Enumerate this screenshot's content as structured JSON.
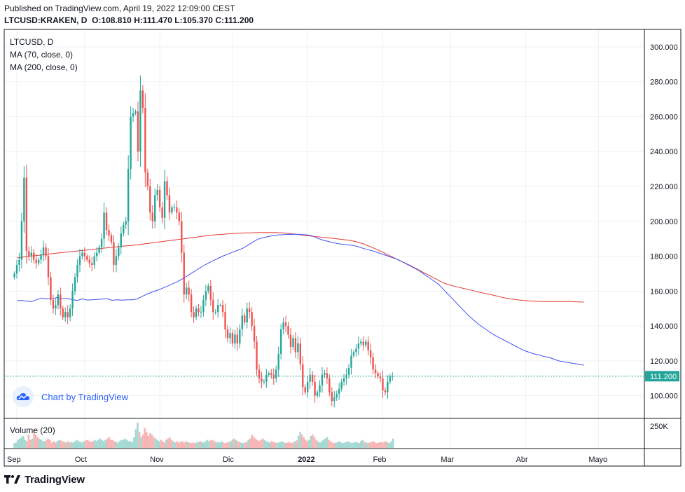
{
  "header": {
    "published": "Published on TradingView.com, April 19, 2022 12:09:00 CEST",
    "symbol": "LTCUSD:KRAKEN, D",
    "o_label": "O:",
    "o_value": "108.810",
    "h_label": "H:",
    "h_value": "111.470",
    "l_label": "L:",
    "l_value": "105.370",
    "c_label": "C:",
    "c_value": "111.200"
  },
  "legend": {
    "symbol": "LTCUSD, D",
    "ma70": "MA (70, close, 0)",
    "ma200": "MA (200, close, 0)"
  },
  "volume_legend": "Volume (20)",
  "chart_by": "Chart by TradingView",
  "brand": "TradingView",
  "icons": {
    "cloud": "tradingview-cloud-icon",
    "logo": "tradingview-logo-icon"
  },
  "colors": {
    "up": "#26a69a",
    "down": "#ef5350",
    "ma70": "#3f51f5",
    "ma200": "#e53935",
    "last_price": "#26a69a",
    "grid": "#eef1f5"
  },
  "chart_data": {
    "type": "candlestick",
    "price_axis": {
      "ticks": [
        100,
        120,
        140,
        160,
        180,
        200,
        220,
        240,
        260,
        280,
        300
      ],
      "tick_labels": [
        "100.000",
        "120.000",
        "140.000",
        "160.000",
        "180.000",
        "200.000",
        "220.000",
        "240.000",
        "260.000",
        "280.000",
        "300.000"
      ],
      "range": [
        87,
        310
      ],
      "last_price": 111.2,
      "last_price_label": "111.200"
    },
    "volume_axis": {
      "tick_label": "250K"
    },
    "time_axis": {
      "labels": [
        "Sep",
        "Oct",
        "Nov",
        "Dic",
        "2022",
        "Feb",
        "Mar",
        "Abr",
        "Mayo"
      ],
      "label_day_index": [
        0,
        28,
        59,
        89,
        120,
        151,
        179,
        210,
        240
      ]
    },
    "first_day_index": -1,
    "closes": [
      170,
      175,
      178,
      200,
      225,
      183,
      180,
      182,
      178,
      176,
      178,
      181,
      185,
      180,
      168,
      155,
      150,
      152,
      158,
      150,
      145,
      148,
      145,
      150,
      160,
      168,
      175,
      180,
      182,
      180,
      178,
      176,
      175,
      180,
      182,
      185,
      190,
      205,
      195,
      192,
      188,
      175,
      180,
      185,
      193,
      198,
      200,
      230,
      260,
      262,
      263,
      240,
      275,
      265,
      228,
      220,
      205,
      200,
      215,
      218,
      208,
      202,
      223,
      215,
      205,
      208,
      208,
      205,
      200,
      182,
      158,
      162,
      158,
      148,
      145,
      150,
      148,
      148,
      155,
      160,
      163,
      155,
      148,
      148,
      152,
      152,
      148,
      138,
      133,
      136,
      130,
      135,
      130,
      138,
      146,
      142,
      150,
      148,
      140,
      131,
      115,
      110,
      108,
      108,
      112,
      113,
      112,
      110,
      115,
      124,
      138,
      142,
      140,
      135,
      128,
      133,
      125,
      130,
      118,
      105,
      102,
      108,
      112,
      108,
      100,
      102,
      106,
      112,
      113,
      110,
      102,
      97,
      99,
      101,
      104,
      108,
      110,
      112,
      116,
      123,
      125,
      127,
      130,
      131,
      129,
      131,
      126,
      122,
      115,
      113,
      111,
      110,
      103,
      102,
      108,
      111,
      111.2
    ],
    "ma70": [
      154.5,
      154.6,
      154.2,
      154,
      155.2,
      156,
      155.5,
      155.6,
      156.3,
      155.6,
      155.7,
      155.2,
      154.6,
      155.5,
      154.9,
      155,
      155.2,
      155.4,
      155.6,
      154.7,
      155,
      154.8,
      155,
      155,
      155.5,
      157,
      158.3,
      159.5,
      160.5,
      161.6,
      162.8,
      164.1,
      165.4,
      167,
      168.8,
      170.6,
      172.4,
      174.2,
      175.8,
      177.3,
      178.6,
      180,
      181.1,
      182.3,
      183.4,
      184.5,
      186.2,
      188,
      189.7,
      190.6,
      191.2,
      191.8,
      192.2,
      192.3,
      192.5,
      192.6,
      192.5,
      192.4,
      192.2,
      191.6,
      190.2,
      189.2,
      188.5,
      187.8,
      187.2,
      186.8,
      186.5,
      186.2,
      185.5,
      184.5,
      183.7,
      183,
      182,
      181,
      180,
      179,
      178,
      176.5,
      175,
      173.5,
      172,
      170,
      168,
      166,
      164,
      161,
      158,
      155,
      152,
      149,
      146,
      143.5,
      141,
      139,
      137,
      135,
      133.5,
      132,
      130.5,
      129,
      127.5,
      126,
      125,
      124,
      123.5,
      122.5,
      122,
      121,
      120,
      119.5,
      119,
      118.5,
      118,
      117.5
    ],
    "ma70_first_day_index": 0,
    "ma200": [
      179,
      179.5,
      180,
      180.4,
      180.8,
      181.3,
      181.8,
      182.2,
      182.6,
      182.9,
      183.3,
      183.8,
      184.2,
      184.6,
      185,
      185.4,
      185.8,
      186.1,
      186.5,
      187,
      187.5,
      188,
      188.5,
      189,
      189.5,
      190,
      190.5,
      191,
      191.5,
      192,
      192.3,
      192.6,
      192.9,
      193.1,
      193.3,
      193.4,
      193.5,
      193.6,
      193.6,
      193.5,
      193.3,
      193,
      192.5,
      192,
      191.6,
      191.2,
      190.8,
      190.4,
      190,
      189.5,
      189,
      188.2,
      187,
      185.5,
      183.8,
      182,
      180,
      178.2,
      176.4,
      174.6,
      172.6,
      170.6,
      168.6,
      166.6,
      164.6,
      163.4,
      162.4,
      161.5,
      160.6,
      159.7,
      158.8,
      158,
      157.1,
      156.2,
      155.5,
      155,
      154.6,
      154.3,
      154.1,
      154,
      154,
      154,
      154,
      154,
      153.8,
      153.7
    ],
    "ma200_first_day_index": 27,
    "volume": {
      "note": "relative volume bars, max 1",
      "values": [
        0.18,
        0.2,
        0.3,
        0.35,
        0.4,
        0.45,
        0.3,
        0.25,
        0.5,
        0.3,
        0.35,
        0.7,
        0.5,
        0.4,
        0.35,
        0.3,
        0.25,
        0.25,
        0.3,
        0.35,
        0.3,
        0.2,
        0.25,
        0.2,
        0.25,
        0.3,
        0.28,
        0.25,
        0.22,
        0.2,
        0.25,
        0.2,
        0.22,
        0.2,
        0.25,
        0.3,
        0.25,
        0.22,
        0.2,
        0.25,
        0.28,
        0.3,
        0.25,
        0.22,
        0.25,
        0.3,
        0.25,
        0.3,
        0.35,
        0.3,
        0.25,
        0.3,
        0.35,
        0.4,
        0.3,
        0.3,
        0.25,
        0.22,
        0.2,
        0.25,
        0.3,
        0.3,
        0.35,
        0.3,
        0.25,
        0.25,
        0.22,
        0.4,
        0.7,
        0.95,
        0.6,
        0.4,
        0.5,
        0.75,
        0.6,
        0.45,
        0.55,
        0.5,
        0.4,
        0.35,
        0.3,
        0.25,
        0.3,
        0.25,
        0.2,
        0.3,
        0.35,
        0.4,
        0.3,
        0.25,
        0.2,
        0.25,
        0.2,
        0.22,
        0.25,
        0.2,
        0.25,
        0.22,
        0.2,
        0.18,
        0.2,
        0.18,
        0.2,
        0.22,
        0.25,
        0.22,
        0.2,
        0.25,
        0.3,
        0.25,
        0.3,
        0.28,
        0.25,
        0.2,
        0.22,
        0.2,
        0.25,
        0.2,
        0.18,
        0.2,
        0.22,
        0.25,
        0.3,
        0.35,
        0.3,
        0.25,
        0.22,
        0.2,
        0.18,
        0.2,
        0.22,
        0.3,
        0.35,
        0.5,
        0.4,
        0.35,
        0.3,
        0.25,
        0.3,
        0.35,
        0.3,
        0.25,
        0.22,
        0.2,
        0.25,
        0.22,
        0.2,
        0.18,
        0.2,
        0.22,
        0.25,
        0.2,
        0.18,
        0.2,
        0.22,
        0.18,
        0.2,
        0.25,
        0.28,
        0.45,
        0.6,
        0.5,
        0.4,
        0.3,
        0.25,
        0.3,
        0.45,
        0.5,
        0.4,
        0.3,
        0.25,
        0.2,
        0.25,
        0.3,
        0.35,
        0.4,
        0.3,
        0.25,
        0.2,
        0.18,
        0.2,
        0.22,
        0.25,
        0.2,
        0.18,
        0.2,
        0.22,
        0.25,
        0.2,
        0.18,
        0.2,
        0.22,
        0.2,
        0.18,
        0.25,
        0.3,
        0.22,
        0.2,
        0.18,
        0.2,
        0.22,
        0.25,
        0.2,
        0.18,
        0.2,
        0.22,
        0.2,
        0.22,
        0.25,
        0.2,
        0.18,
        0.25,
        0.35
      ]
    }
  }
}
